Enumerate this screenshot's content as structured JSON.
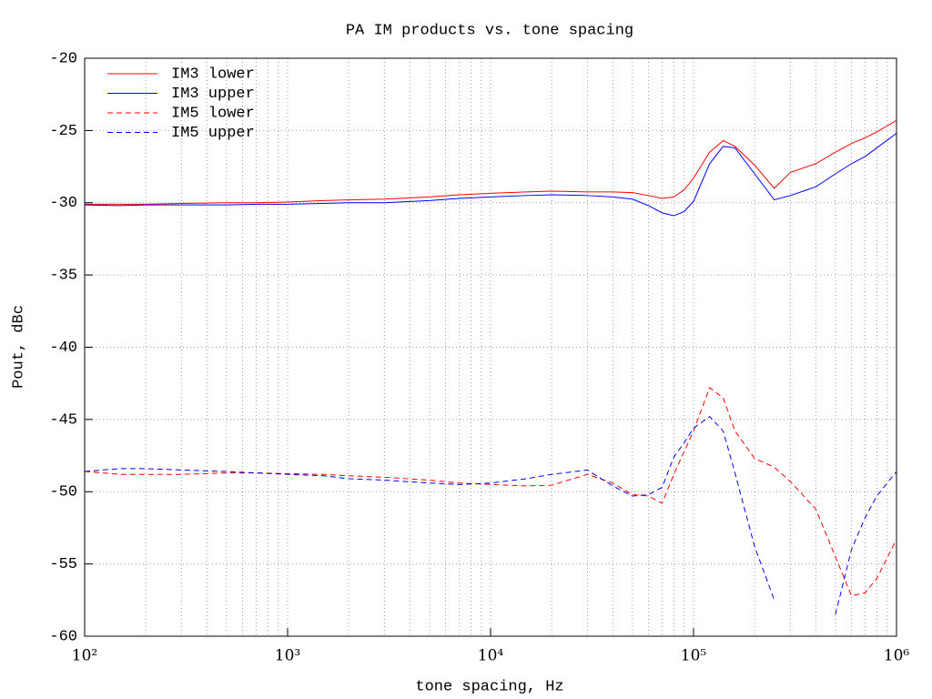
{
  "chart_data": {
    "type": "line",
    "title": "PA IM products vs. tone spacing",
    "xlabel": "tone spacing, Hz",
    "ylabel": "Pout, dBc",
    "xscale": "log",
    "grid": true,
    "legend": "upper left",
    "xlim": [
      100,
      1000000
    ],
    "xticks": [
      {
        "value": 100,
        "label": "10²"
      },
      {
        "value": 1000,
        "label": "10³"
      },
      {
        "value": 10000,
        "label": "10⁴"
      },
      {
        "value": 100000,
        "label": "10⁵"
      },
      {
        "value": 1000000,
        "label": "10⁶"
      }
    ],
    "xminorticks": [
      200,
      300,
      400,
      500,
      600,
      700,
      800,
      900,
      2000,
      3000,
      4000,
      5000,
      6000,
      7000,
      8000,
      9000,
      20000,
      30000,
      40000,
      50000,
      60000,
      70000,
      80000,
      90000,
      200000,
      300000,
      400000,
      500000,
      600000,
      700000,
      800000,
      900000
    ],
    "ylim": [
      -60,
      -20
    ],
    "yticks": [
      -60,
      -55,
      -50,
      -45,
      -40,
      -35,
      -30,
      -25,
      -20
    ],
    "x": [
      100,
      150,
      200,
      300,
      500,
      700,
      1000,
      1500,
      2000,
      3000,
      5000,
      7000,
      10000,
      15000,
      20000,
      30000,
      40000,
      50000,
      60000,
      70000,
      80000,
      90000,
      100000,
      120000,
      140000,
      160000,
      200000,
      250000,
      300000,
      400000,
      500000,
      600000,
      700000,
      800000,
      1000000
    ],
    "series": [
      {
        "name": "IM3 lower",
        "color": "#ff0000",
        "dash": false,
        "values": [
          -30.1,
          -30.1,
          -30.1,
          -30.05,
          -30.0,
          -30.0,
          -29.95,
          -29.85,
          -29.8,
          -29.75,
          -29.6,
          -29.45,
          -29.35,
          -29.25,
          -29.2,
          -29.25,
          -29.25,
          -29.3,
          -29.5,
          -29.7,
          -29.6,
          -29.1,
          -28.3,
          -26.5,
          -25.7,
          -26.1,
          -27.4,
          -29.0,
          -27.9,
          -27.3,
          -26.5,
          -25.9,
          -25.5,
          -25.1,
          -24.3
        ]
      },
      {
        "name": "IM3 upper",
        "color": "#0000ff",
        "dash": false,
        "values": [
          -30.15,
          -30.2,
          -30.15,
          -30.15,
          -30.15,
          -30.1,
          -30.1,
          -30.05,
          -30.0,
          -30.0,
          -29.85,
          -29.7,
          -29.6,
          -29.5,
          -29.45,
          -29.5,
          -29.6,
          -29.75,
          -30.2,
          -30.7,
          -30.9,
          -30.6,
          -29.9,
          -27.3,
          -26.1,
          -26.2,
          -28.0,
          -29.8,
          -29.5,
          -28.9,
          -28.0,
          -27.3,
          -26.8,
          -26.2,
          -25.2
        ]
      },
      {
        "name": "IM5 lower",
        "color": "#ff0000",
        "dash": true,
        "values": [
          -48.6,
          -48.8,
          -48.8,
          -48.8,
          -48.7,
          -48.7,
          -48.75,
          -48.8,
          -48.9,
          -49.0,
          -49.2,
          -49.4,
          -49.5,
          -49.6,
          -49.55,
          -48.8,
          -49.4,
          -50.2,
          -50.3,
          -50.8,
          -48.8,
          -47.2,
          -45.8,
          -42.8,
          -43.5,
          -45.8,
          -47.7,
          -48.3,
          -49.3,
          -51.2,
          -54.5,
          -57.2,
          -57.0,
          -56.0,
          -53.3
        ]
      },
      {
        "name": "IM5 upper",
        "color": "#0000ff",
        "dash": true,
        "values": [
          -48.6,
          -48.4,
          -48.4,
          -48.5,
          -48.6,
          -48.7,
          -48.8,
          -48.9,
          -49.1,
          -49.2,
          -49.4,
          -49.5,
          -49.4,
          -49.1,
          -48.8,
          -48.5,
          -49.6,
          -50.3,
          -50.2,
          -49.7,
          -47.6,
          -46.6,
          -45.6,
          -44.8,
          -45.8,
          -48.7,
          -53.8,
          -57.5,
          null,
          null,
          -58.5,
          -54.0,
          -51.8,
          -50.3,
          -48.6
        ]
      }
    ]
  }
}
